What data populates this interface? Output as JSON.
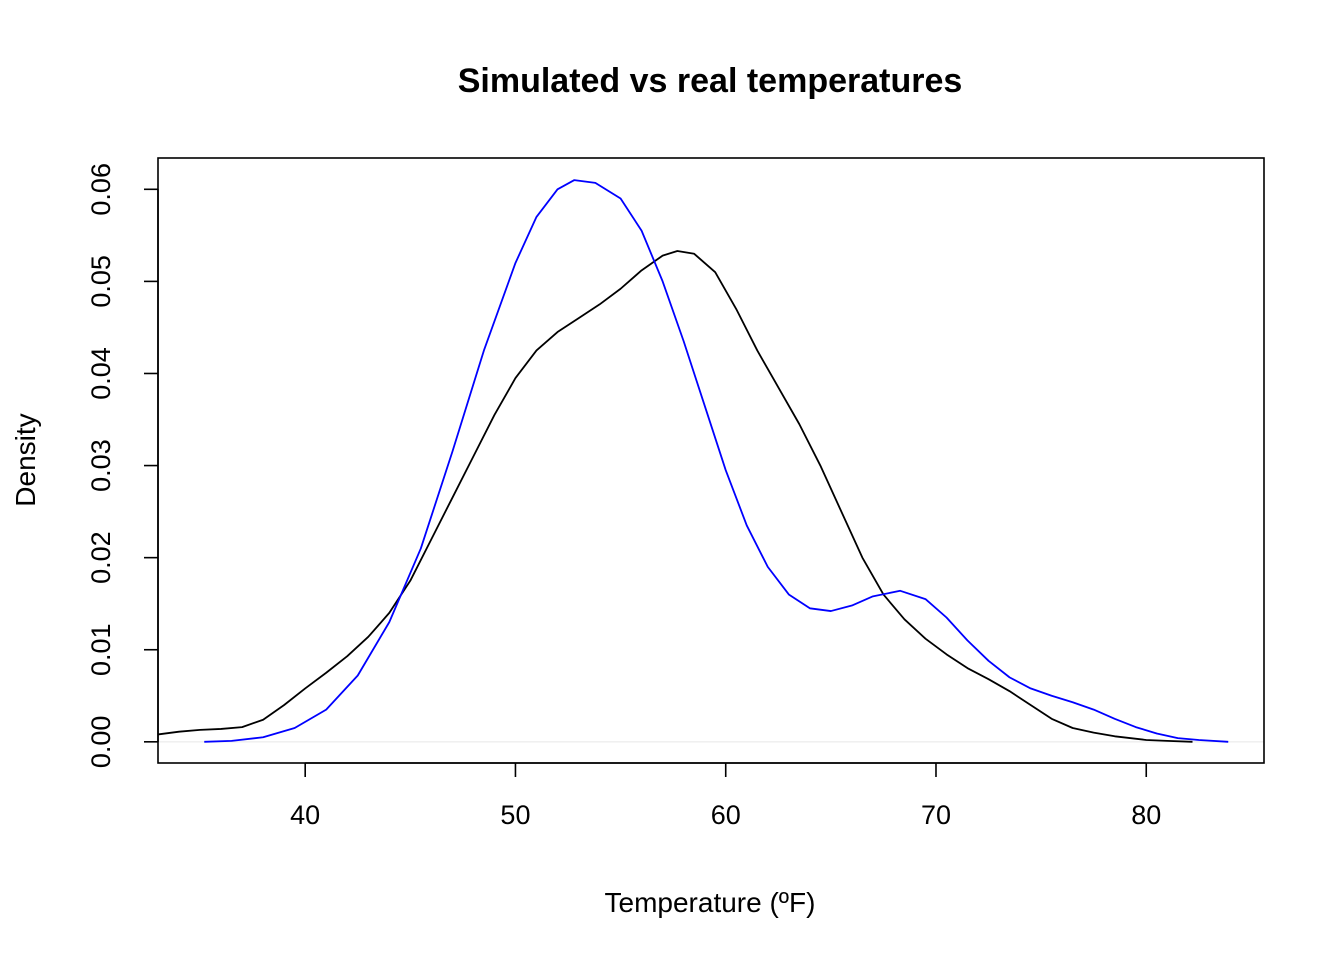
{
  "chart_data": {
    "type": "line",
    "title": "Simulated vs real temperatures",
    "xlabel": "Temperature (ºF)",
    "ylabel": "Density",
    "xlim": [
      33,
      85.6
    ],
    "ylim": [
      -0.0023,
      0.0634
    ],
    "xticks": [
      40,
      50,
      60,
      70,
      80
    ],
    "yticks": [
      0.0,
      0.01,
      0.02,
      0.03,
      0.04,
      0.05,
      0.06
    ],
    "xtick_labels": [
      "40",
      "50",
      "60",
      "70",
      "80"
    ],
    "ytick_labels": [
      "0.00",
      "0.01",
      "0.02",
      "0.03",
      "0.04",
      "0.05",
      "0.06"
    ],
    "zero_line_color": "#eeeeee",
    "grid": false,
    "legend": "none",
    "series": [
      {
        "color": "#000000",
        "points": [
          [
            33,
            0.0008
          ],
          [
            34,
            0.0011
          ],
          [
            35,
            0.0013
          ],
          [
            36,
            0.0014
          ],
          [
            37,
            0.0016
          ],
          [
            38,
            0.0024
          ],
          [
            39,
            0.004
          ],
          [
            40,
            0.0058
          ],
          [
            41,
            0.0075
          ],
          [
            42,
            0.0093
          ],
          [
            43,
            0.0114
          ],
          [
            44,
            0.014
          ],
          [
            45,
            0.0175
          ],
          [
            46,
            0.022
          ],
          [
            47,
            0.0265
          ],
          [
            48,
            0.031
          ],
          [
            49,
            0.0355
          ],
          [
            50,
            0.0395
          ],
          [
            51,
            0.0425
          ],
          [
            52,
            0.0445
          ],
          [
            53,
            0.046
          ],
          [
            54,
            0.0475
          ],
          [
            55,
            0.0492
          ],
          [
            56,
            0.0512
          ],
          [
            57,
            0.0528
          ],
          [
            57.7,
            0.0533
          ],
          [
            58.5,
            0.053
          ],
          [
            59.5,
            0.051
          ],
          [
            60.5,
            0.047
          ],
          [
            61.5,
            0.0425
          ],
          [
            62.5,
            0.0385
          ],
          [
            63.5,
            0.0345
          ],
          [
            64.5,
            0.03
          ],
          [
            65.5,
            0.025
          ],
          [
            66.5,
            0.02
          ],
          [
            67.5,
            0.016
          ],
          [
            68.5,
            0.0133
          ],
          [
            69.5,
            0.0112
          ],
          [
            70.5,
            0.0095
          ],
          [
            71.5,
            0.008
          ],
          [
            72.5,
            0.0068
          ],
          [
            73.5,
            0.0055
          ],
          [
            74.5,
            0.004
          ],
          [
            75.5,
            0.0025
          ],
          [
            76.5,
            0.0015
          ],
          [
            77.5,
            0.001
          ],
          [
            78.5,
            0.0006
          ],
          [
            80,
            0.0002
          ],
          [
            81,
            0.0001
          ],
          [
            82.2,
            0.0
          ]
        ]
      },
      {
        "color": "#0000ff",
        "points": [
          [
            35.2,
            0.0
          ],
          [
            36.5,
            0.0001
          ],
          [
            38,
            0.0005
          ],
          [
            39.5,
            0.0015
          ],
          [
            41,
            0.0035
          ],
          [
            42.5,
            0.0072
          ],
          [
            44,
            0.013
          ],
          [
            45.5,
            0.021
          ],
          [
            47,
            0.0315
          ],
          [
            48.5,
            0.0425
          ],
          [
            50,
            0.052
          ],
          [
            51,
            0.057
          ],
          [
            52,
            0.06
          ],
          [
            52.8,
            0.061
          ],
          [
            53.8,
            0.0607
          ],
          [
            55,
            0.059
          ],
          [
            56,
            0.0555
          ],
          [
            57,
            0.05
          ],
          [
            58,
            0.0435
          ],
          [
            59,
            0.0365
          ],
          [
            60,
            0.0295
          ],
          [
            61,
            0.0235
          ],
          [
            62,
            0.019
          ],
          [
            63,
            0.016
          ],
          [
            64,
            0.0145
          ],
          [
            65,
            0.0142
          ],
          [
            66,
            0.0148
          ],
          [
            67,
            0.0158
          ],
          [
            68.3,
            0.0164
          ],
          [
            69.5,
            0.0155
          ],
          [
            70.5,
            0.0135
          ],
          [
            71.5,
            0.011
          ],
          [
            72.5,
            0.0088
          ],
          [
            73.5,
            0.007
          ],
          [
            74.5,
            0.0058
          ],
          [
            75.5,
            0.005
          ],
          [
            76.5,
            0.0043
          ],
          [
            77.5,
            0.0035
          ],
          [
            78.5,
            0.0025
          ],
          [
            79.5,
            0.0016
          ],
          [
            80.5,
            0.0009
          ],
          [
            81.5,
            0.0004
          ],
          [
            82.5,
            0.0002
          ],
          [
            83.9,
            0.0
          ]
        ]
      }
    ]
  }
}
